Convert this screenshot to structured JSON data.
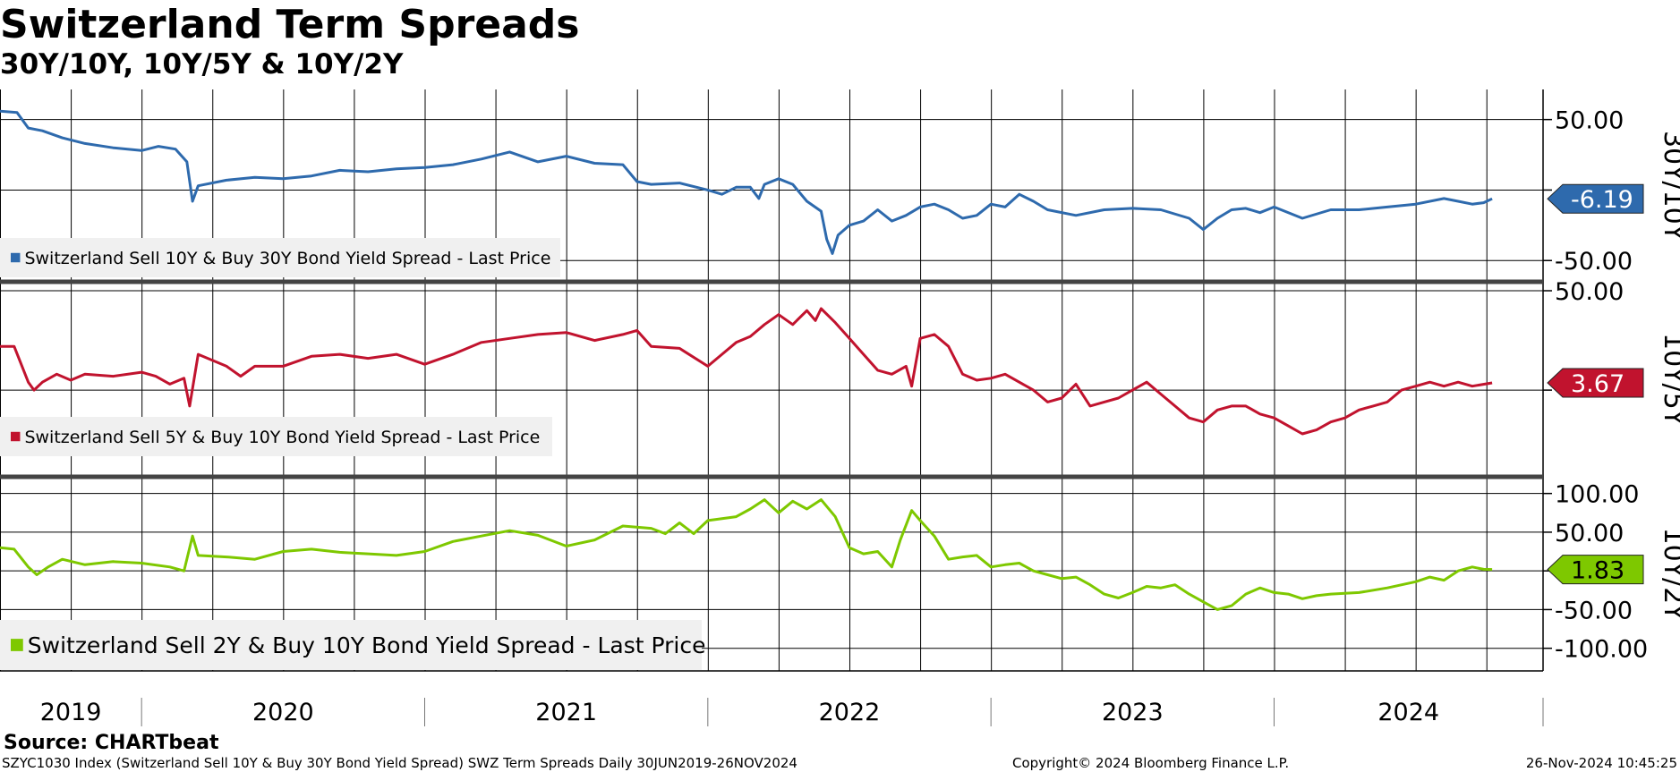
{
  "header": {
    "title": "Switzerland Term Spreads",
    "subtitle": "30Y/10Y, 10Y/5Y & 10Y/2Y"
  },
  "footer": {
    "source": "Source: CHARTbeat",
    "security": "SZYC1030 Index (Switzerland Sell 10Y & Buy 30Y Bond Yield Spread) SWZ Term Spreads  Daily 30JUN2019-26NOV2024",
    "copyright": "Copyright© 2024 Bloomberg Finance L.P.",
    "timestamp": "26-Nov-2024 10:45:25"
  },
  "chart_data": {
    "type": "line",
    "x_axis": {
      "years": [
        "2019",
        "2020",
        "2021",
        "2022",
        "2023",
        "2024"
      ],
      "start": 2019.5,
      "end": 2024.95
    },
    "panels": [
      {
        "axis_title": "30Y/10Y",
        "legend": "Switzerland Sell 10Y & Buy 30Y Bond Yield Spread - Last Price",
        "color": "#2e6aad",
        "last_value": "-6.19",
        "ylim": [
          -60,
          65
        ],
        "ticks": [
          {
            "value": 50,
            "label": "50.00"
          },
          {
            "value": 0,
            "label": ""
          },
          {
            "value": -50,
            "label": "-50.00"
          }
        ],
        "series": [
          [
            2019.5,
            56
          ],
          [
            2019.56,
            55
          ],
          [
            2019.6,
            44
          ],
          [
            2019.65,
            42
          ],
          [
            2019.72,
            37
          ],
          [
            2019.8,
            33
          ],
          [
            2019.9,
            30
          ],
          [
            2020.0,
            28
          ],
          [
            2020.06,
            31
          ],
          [
            2020.12,
            29
          ],
          [
            2020.16,
            20
          ],
          [
            2020.18,
            -8
          ],
          [
            2020.2,
            3
          ],
          [
            2020.3,
            7
          ],
          [
            2020.4,
            9
          ],
          [
            2020.5,
            8
          ],
          [
            2020.6,
            10
          ],
          [
            2020.7,
            14
          ],
          [
            2020.8,
            13
          ],
          [
            2020.9,
            15
          ],
          [
            2021.0,
            16
          ],
          [
            2021.1,
            18
          ],
          [
            2021.2,
            22
          ],
          [
            2021.3,
            27
          ],
          [
            2021.4,
            20
          ],
          [
            2021.5,
            24
          ],
          [
            2021.6,
            19
          ],
          [
            2021.7,
            18
          ],
          [
            2021.75,
            6
          ],
          [
            2021.8,
            4
          ],
          [
            2021.9,
            5
          ],
          [
            2022.0,
            0
          ],
          [
            2022.05,
            -3
          ],
          [
            2022.1,
            2
          ],
          [
            2022.15,
            2
          ],
          [
            2022.18,
            -6
          ],
          [
            2022.2,
            4
          ],
          [
            2022.25,
            8
          ],
          [
            2022.3,
            4
          ],
          [
            2022.35,
            -8
          ],
          [
            2022.4,
            -15
          ],
          [
            2022.42,
            -35
          ],
          [
            2022.44,
            -45
          ],
          [
            2022.46,
            -32
          ],
          [
            2022.5,
            -25
          ],
          [
            2022.55,
            -22
          ],
          [
            2022.6,
            -14
          ],
          [
            2022.65,
            -22
          ],
          [
            2022.7,
            -18
          ],
          [
            2022.75,
            -12
          ],
          [
            2022.8,
            -10
          ],
          [
            2022.85,
            -14
          ],
          [
            2022.9,
            -20
          ],
          [
            2022.95,
            -18
          ],
          [
            2023.0,
            -10
          ],
          [
            2023.05,
            -12
          ],
          [
            2023.1,
            -3
          ],
          [
            2023.15,
            -8
          ],
          [
            2023.2,
            -14
          ],
          [
            2023.3,
            -18
          ],
          [
            2023.4,
            -14
          ],
          [
            2023.5,
            -13
          ],
          [
            2023.6,
            -14
          ],
          [
            2023.7,
            -20
          ],
          [
            2023.75,
            -28
          ],
          [
            2023.8,
            -20
          ],
          [
            2023.85,
            -14
          ],
          [
            2023.9,
            -13
          ],
          [
            2023.95,
            -16
          ],
          [
            2024.0,
            -12
          ],
          [
            2024.1,
            -20
          ],
          [
            2024.2,
            -14
          ],
          [
            2024.3,
            -14
          ],
          [
            2024.4,
            -12
          ],
          [
            2024.5,
            -10
          ],
          [
            2024.6,
            -6
          ],
          [
            2024.65,
            -8
          ],
          [
            2024.7,
            -10
          ],
          [
            2024.74,
            -9
          ],
          [
            2024.77,
            -6.19
          ]
        ]
      },
      {
        "axis_title": "10Y/5Y",
        "legend": "Switzerland Sell 5Y & Buy 10Y Bond Yield Spread - Last Price",
        "color": "#c1132e",
        "last_value": "3.67",
        "ylim": [
          -40,
          50
        ],
        "ticks": [
          {
            "value": 50,
            "label": "50.00"
          },
          {
            "value": 0,
            "label": ""
          }
        ],
        "series": [
          [
            2019.5,
            22
          ],
          [
            2019.55,
            22
          ],
          [
            2019.6,
            4
          ],
          [
            2019.62,
            0
          ],
          [
            2019.65,
            4
          ],
          [
            2019.7,
            8
          ],
          [
            2019.75,
            5
          ],
          [
            2019.8,
            8
          ],
          [
            2019.9,
            7
          ],
          [
            2020.0,
            9
          ],
          [
            2020.05,
            7
          ],
          [
            2020.1,
            3
          ],
          [
            2020.15,
            6
          ],
          [
            2020.17,
            -8
          ],
          [
            2020.2,
            18
          ],
          [
            2020.3,
            12
          ],
          [
            2020.35,
            7
          ],
          [
            2020.4,
            12
          ],
          [
            2020.5,
            12
          ],
          [
            2020.6,
            17
          ],
          [
            2020.7,
            18
          ],
          [
            2020.8,
            16
          ],
          [
            2020.9,
            18
          ],
          [
            2021.0,
            13
          ],
          [
            2021.1,
            18
          ],
          [
            2021.2,
            24
          ],
          [
            2021.3,
            26
          ],
          [
            2021.4,
            28
          ],
          [
            2021.5,
            29
          ],
          [
            2021.6,
            25
          ],
          [
            2021.7,
            28
          ],
          [
            2021.75,
            30
          ],
          [
            2021.8,
            22
          ],
          [
            2021.9,
            21
          ],
          [
            2022.0,
            12
          ],
          [
            2022.05,
            18
          ],
          [
            2022.1,
            24
          ],
          [
            2022.15,
            27
          ],
          [
            2022.2,
            33
          ],
          [
            2022.25,
            38
          ],
          [
            2022.3,
            33
          ],
          [
            2022.35,
            40
          ],
          [
            2022.38,
            35
          ],
          [
            2022.4,
            41
          ],
          [
            2022.45,
            34
          ],
          [
            2022.5,
            26
          ],
          [
            2022.55,
            18
          ],
          [
            2022.6,
            10
          ],
          [
            2022.65,
            8
          ],
          [
            2022.7,
            12
          ],
          [
            2022.72,
            2
          ],
          [
            2022.75,
            26
          ],
          [
            2022.8,
            28
          ],
          [
            2022.85,
            22
          ],
          [
            2022.9,
            8
          ],
          [
            2022.95,
            5
          ],
          [
            2023.0,
            6
          ],
          [
            2023.05,
            8
          ],
          [
            2023.1,
            4
          ],
          [
            2023.15,
            0
          ],
          [
            2023.2,
            -6
          ],
          [
            2023.25,
            -4
          ],
          [
            2023.3,
            3
          ],
          [
            2023.35,
            -8
          ],
          [
            2023.4,
            -6
          ],
          [
            2023.45,
            -4
          ],
          [
            2023.5,
            0
          ],
          [
            2023.55,
            4
          ],
          [
            2023.6,
            -2
          ],
          [
            2023.65,
            -8
          ],
          [
            2023.7,
            -14
          ],
          [
            2023.75,
            -16
          ],
          [
            2023.8,
            -10
          ],
          [
            2023.85,
            -8
          ],
          [
            2023.9,
            -8
          ],
          [
            2023.95,
            -12
          ],
          [
            2024.0,
            -14
          ],
          [
            2024.05,
            -18
          ],
          [
            2024.1,
            -22
          ],
          [
            2024.15,
            -20
          ],
          [
            2024.2,
            -16
          ],
          [
            2024.25,
            -14
          ],
          [
            2024.3,
            -10
          ],
          [
            2024.35,
            -8
          ],
          [
            2024.4,
            -6
          ],
          [
            2024.45,
            0
          ],
          [
            2024.5,
            2
          ],
          [
            2024.55,
            4
          ],
          [
            2024.6,
            2
          ],
          [
            2024.65,
            4
          ],
          [
            2024.7,
            2
          ],
          [
            2024.77,
            3.67
          ]
        ]
      },
      {
        "axis_title": "10Y/2Y",
        "legend": "Switzerland Sell 2Y & Buy 10Y Bond Yield Spread - Last Price",
        "color": "#7ec800",
        "last_value": "1.83",
        "ylim": [
          -120,
          110
        ],
        "ticks": [
          {
            "value": 100,
            "label": "100.00"
          },
          {
            "value": 50,
            "label": "50.00"
          },
          {
            "value": 0,
            "label": ""
          },
          {
            "value": -50,
            "label": "-50.00"
          },
          {
            "value": -100,
            "label": "-100.00"
          }
        ],
        "series": [
          [
            2019.5,
            30
          ],
          [
            2019.55,
            28
          ],
          [
            2019.6,
            5
          ],
          [
            2019.63,
            -5
          ],
          [
            2019.67,
            5
          ],
          [
            2019.72,
            15
          ],
          [
            2019.8,
            8
          ],
          [
            2019.9,
            12
          ],
          [
            2020.0,
            10
          ],
          [
            2020.1,
            5
          ],
          [
            2020.15,
            0
          ],
          [
            2020.18,
            45
          ],
          [
            2020.2,
            20
          ],
          [
            2020.3,
            18
          ],
          [
            2020.4,
            15
          ],
          [
            2020.5,
            25
          ],
          [
            2020.6,
            28
          ],
          [
            2020.7,
            24
          ],
          [
            2020.8,
            22
          ],
          [
            2020.9,
            20
          ],
          [
            2021.0,
            25
          ],
          [
            2021.1,
            38
          ],
          [
            2021.2,
            45
          ],
          [
            2021.3,
            52
          ],
          [
            2021.4,
            46
          ],
          [
            2021.5,
            32
          ],
          [
            2021.6,
            40
          ],
          [
            2021.7,
            58
          ],
          [
            2021.8,
            55
          ],
          [
            2021.85,
            48
          ],
          [
            2021.9,
            62
          ],
          [
            2021.95,
            48
          ],
          [
            2022.0,
            65
          ],
          [
            2022.1,
            70
          ],
          [
            2022.15,
            80
          ],
          [
            2022.2,
            92
          ],
          [
            2022.25,
            75
          ],
          [
            2022.3,
            90
          ],
          [
            2022.35,
            80
          ],
          [
            2022.4,
            92
          ],
          [
            2022.45,
            70
          ],
          [
            2022.5,
            30
          ],
          [
            2022.55,
            22
          ],
          [
            2022.6,
            25
          ],
          [
            2022.65,
            5
          ],
          [
            2022.68,
            40
          ],
          [
            2022.72,
            78
          ],
          [
            2022.75,
            65
          ],
          [
            2022.8,
            45
          ],
          [
            2022.85,
            15
          ],
          [
            2022.9,
            18
          ],
          [
            2022.95,
            20
          ],
          [
            2023.0,
            5
          ],
          [
            2023.05,
            8
          ],
          [
            2023.1,
            10
          ],
          [
            2023.15,
            0
          ],
          [
            2023.2,
            -5
          ],
          [
            2023.25,
            -10
          ],
          [
            2023.3,
            -8
          ],
          [
            2023.35,
            -18
          ],
          [
            2023.4,
            -30
          ],
          [
            2023.45,
            -35
          ],
          [
            2023.5,
            -28
          ],
          [
            2023.55,
            -20
          ],
          [
            2023.6,
            -22
          ],
          [
            2023.65,
            -18
          ],
          [
            2023.7,
            -30
          ],
          [
            2023.75,
            -40
          ],
          [
            2023.8,
            -50
          ],
          [
            2023.85,
            -45
          ],
          [
            2023.9,
            -30
          ],
          [
            2023.95,
            -22
          ],
          [
            2024.0,
            -28
          ],
          [
            2024.05,
            -30
          ],
          [
            2024.1,
            -36
          ],
          [
            2024.15,
            -32
          ],
          [
            2024.2,
            -30
          ],
          [
            2024.3,
            -28
          ],
          [
            2024.4,
            -22
          ],
          [
            2024.5,
            -14
          ],
          [
            2024.55,
            -8
          ],
          [
            2024.6,
            -12
          ],
          [
            2024.65,
            0
          ],
          [
            2024.7,
            5
          ],
          [
            2024.74,
            2
          ],
          [
            2024.77,
            1.83
          ]
        ]
      }
    ]
  }
}
